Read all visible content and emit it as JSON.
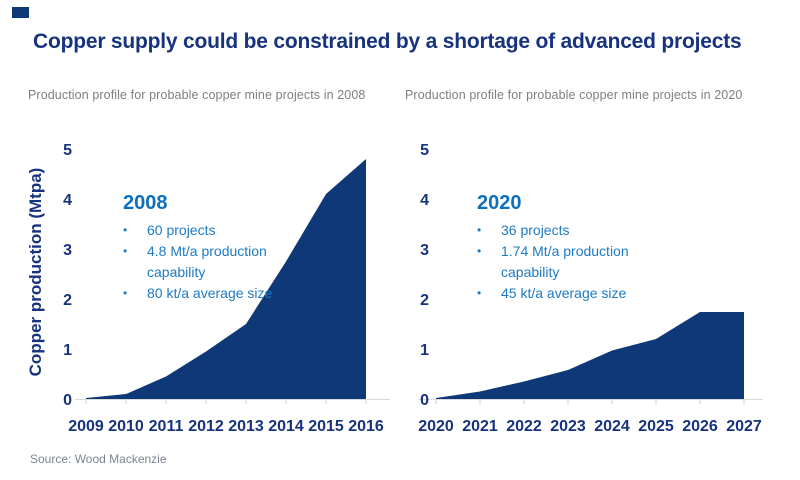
{
  "design": {
    "navy": "#17337f",
    "area_fill": "#0e3878",
    "annotation_heading_color": "#0d70bd",
    "annotation_text_color": "#1e7ac2",
    "subtitle_color": "#7f7f7f",
    "source_color": "#7d8491",
    "axis_line_color": "#d9d9d9",
    "tick_color": "#c9cdd3"
  },
  "header": {
    "title": "Copper supply could be constrained by a shortage of advanced projects"
  },
  "footer": {
    "source": "Source: Wood Mackenzie"
  },
  "chart_data": [
    {
      "type": "area",
      "title": "Production profile for probable copper mine projects in 2008",
      "ylabel": "Copper production (Mtpa)",
      "xlabel": "",
      "categories": [
        "2009",
        "2010",
        "2011",
        "2012",
        "2013",
        "2014",
        "2015",
        "2016"
      ],
      "values": [
        0.02,
        0.1,
        0.45,
        0.95,
        1.5,
        2.75,
        4.1,
        4.8
      ],
      "ylim": [
        0,
        5
      ],
      "yticks": [
        0,
        1,
        2,
        3,
        4,
        5
      ],
      "grid": false,
      "legend": false,
      "annotation": {
        "heading": "2008",
        "bullets": [
          "60 projects",
          "4.8 Mt/a production capability",
          "80 kt/a average size"
        ]
      }
    },
    {
      "type": "area",
      "title": "Production profile for probable copper mine projects in 2020",
      "ylabel": "",
      "xlabel": "",
      "categories": [
        "2020",
        "2021",
        "2022",
        "2023",
        "2024",
        "2025",
        "2026",
        "2027"
      ],
      "values": [
        0.02,
        0.15,
        0.35,
        0.58,
        0.97,
        1.2,
        1.74,
        1.74
      ],
      "ylim": [
        0,
        5
      ],
      "yticks": [
        0,
        1,
        2,
        3,
        4,
        5
      ],
      "grid": false,
      "legend": false,
      "annotation": {
        "heading": "2020",
        "bullets": [
          "36 projects",
          "1.74 Mt/a production capability",
          "45 kt/a average size"
        ]
      }
    }
  ]
}
